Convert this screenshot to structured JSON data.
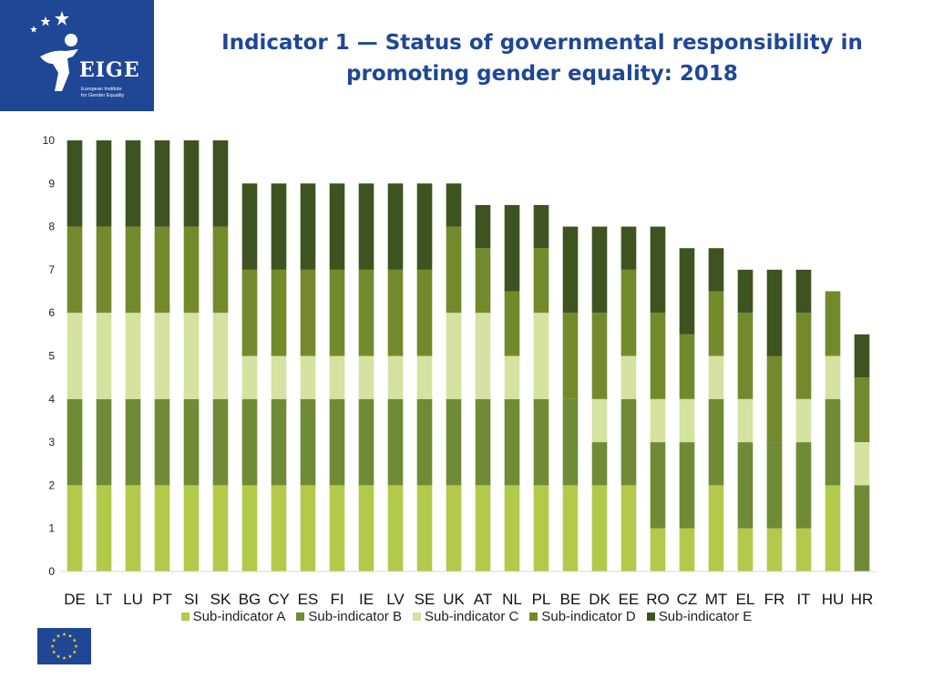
{
  "logo": {
    "brand": "EIGE",
    "org_name_line1": "European Institute",
    "org_name_line2": "for Gender Equality"
  },
  "header": {
    "title_line1": "Indicator 1 — Status of governmental responsibility in",
    "title_line2": "promoting gender equality: 2018"
  },
  "colors": {
    "brand": "#1f4796",
    "sub_a": "#b3c94a",
    "sub_b": "#6f8b36",
    "sub_c": "#d5e2a0",
    "sub_d": "#738a2c",
    "sub_e": "#3d5420"
  },
  "chart_data": {
    "type": "bar",
    "stacked": true,
    "title": "Indicator 1 — Status of governmental responsibility in promoting gender equality: 2018",
    "xlabel": "",
    "ylabel": "",
    "ylim": [
      0,
      10
    ],
    "yticks": [
      "0",
      "1",
      "2",
      "3",
      "4",
      "5",
      "6",
      "7",
      "8",
      "9",
      "10"
    ],
    "grid": false,
    "legend_position": "bottom",
    "categories": [
      "DE",
      "LT",
      "LU",
      "PT",
      "SI",
      "SK",
      "BG",
      "CY",
      "ES",
      "FI",
      "IE",
      "LV",
      "SE",
      "UK",
      "AT",
      "NL",
      "PL",
      "BE",
      "DK",
      "EE",
      "RO",
      "CZ",
      "MT",
      "EL",
      "FR",
      "IT",
      "HU",
      "HR"
    ],
    "series": [
      {
        "name": "Sub-indicator A",
        "color": "#b3c94a",
        "values": [
          2,
          2,
          2,
          2,
          2,
          2,
          2,
          2,
          2,
          2,
          2,
          2,
          2,
          2,
          2,
          2,
          2,
          2,
          2,
          2,
          1,
          1,
          2,
          1,
          1,
          1,
          2,
          0
        ]
      },
      {
        "name": "Sub-indicator B",
        "color": "#6f8b36",
        "values": [
          2,
          2,
          2,
          2,
          2,
          2,
          2,
          2,
          2,
          2,
          2,
          2,
          2,
          2,
          2,
          2,
          2,
          2,
          1,
          2,
          2,
          2,
          2,
          2,
          2,
          2,
          2,
          2
        ]
      },
      {
        "name": "Sub-indicator C",
        "color": "#d5e2a0",
        "values": [
          2,
          2,
          2,
          2,
          2,
          2,
          1,
          1,
          1,
          1,
          1,
          1,
          1,
          2,
          2,
          1,
          2,
          0,
          1,
          1,
          1,
          1,
          1,
          1,
          0,
          1,
          1,
          1
        ]
      },
      {
        "name": "Sub-indicator D",
        "color": "#738a2c",
        "values": [
          2,
          2,
          2,
          2,
          2,
          2,
          2,
          2,
          2,
          2,
          2,
          2,
          2,
          2,
          1.5,
          1.5,
          1.5,
          2,
          2,
          2,
          2,
          1.5,
          1.5,
          2,
          2,
          2,
          1.5,
          1.5
        ]
      },
      {
        "name": "Sub-indicator E",
        "color": "#3d5420",
        "values": [
          2,
          2,
          2,
          2,
          2,
          2,
          2,
          2,
          2,
          2,
          2,
          2,
          2,
          1,
          1,
          2,
          1,
          2,
          2,
          1,
          2,
          2,
          1,
          1,
          2,
          1,
          0,
          1
        ]
      }
    ]
  }
}
